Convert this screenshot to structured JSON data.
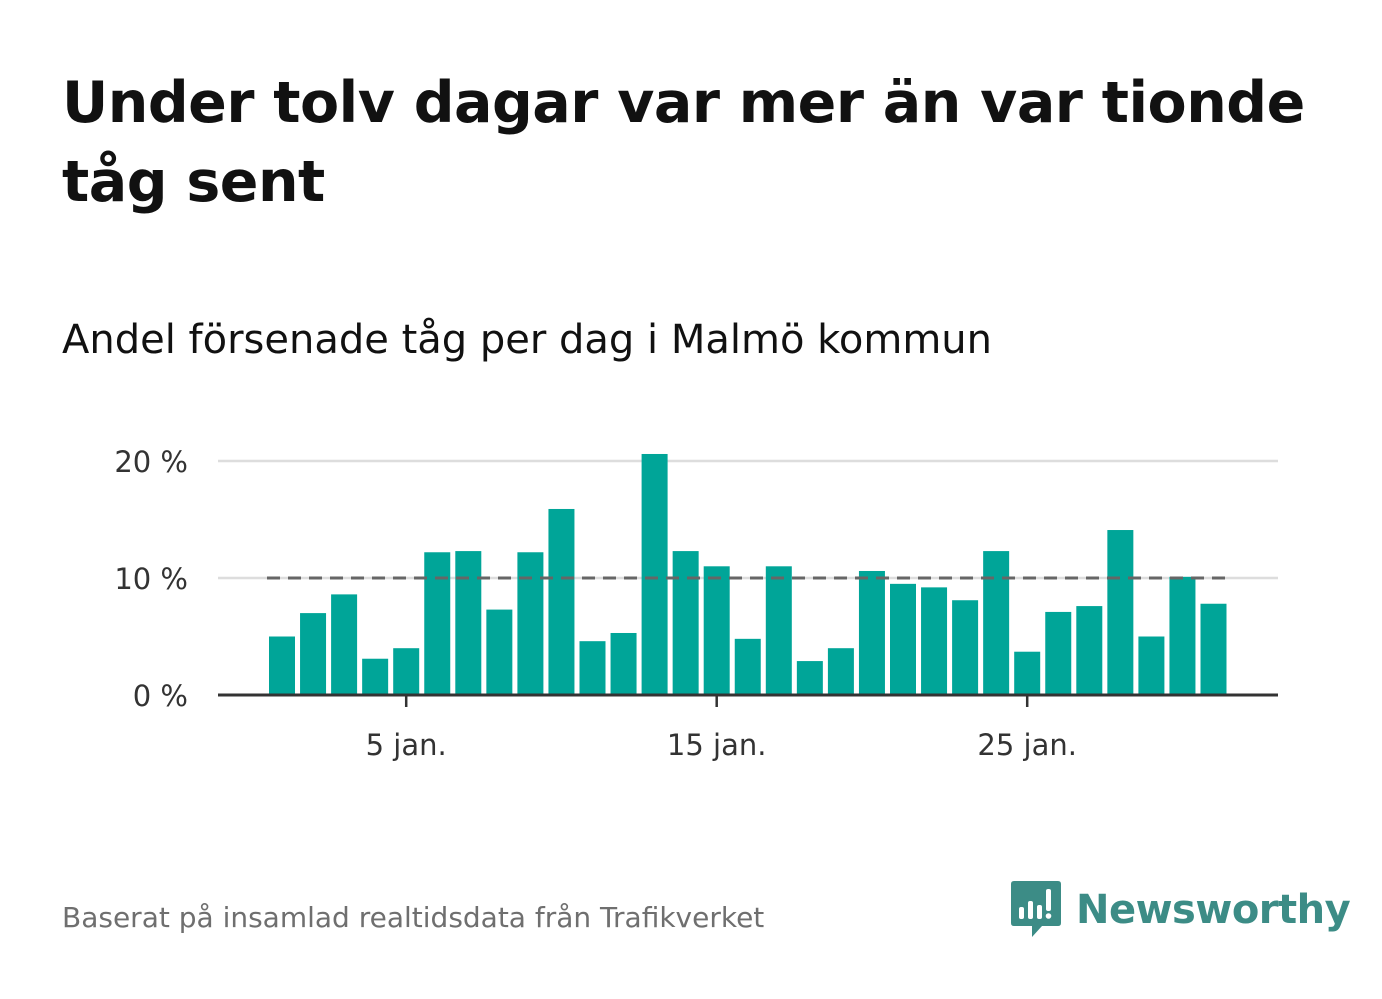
{
  "headline": "Under tolv dagar var mer än var tionde tåg sent",
  "source": "Baserat på insamlad realtidsdata från Trafikverket",
  "brand": {
    "name": "Newsworthy",
    "logo_icon": "bar-chart-speech-bubble-icon",
    "color": "#3c8c86"
  },
  "colors": {
    "bar": "#00a598",
    "reference_line": "#666666",
    "grid": "#dddddd",
    "axis": "#333333",
    "text": "#111111",
    "muted": "#6f6f6f"
  },
  "chart_data": {
    "type": "bar",
    "title": "Andel försenade tåg per dag i Malmö kommun",
    "x": [
      1,
      2,
      3,
      4,
      5,
      6,
      7,
      8,
      9,
      10,
      11,
      12,
      13,
      14,
      15,
      16,
      17,
      18,
      19,
      20,
      21,
      22,
      23,
      24,
      25,
      26,
      27,
      28,
      29,
      30,
      31
    ],
    "values": [
      5.0,
      7.0,
      8.6,
      3.1,
      4.0,
      12.2,
      12.3,
      7.3,
      12.2,
      15.9,
      4.6,
      5.3,
      20.6,
      12.3,
      11.0,
      4.8,
      11.0,
      2.9,
      4.0,
      10.6,
      9.5,
      9.2,
      8.1,
      12.3,
      3.7,
      7.1,
      7.6,
      14.1,
      5.0,
      10.1,
      7.8
    ],
    "ylim": [
      0,
      22
    ],
    "y_ticks": [
      {
        "value": 0,
        "label": "0 %"
      },
      {
        "value": 10,
        "label": "10 %"
      },
      {
        "value": 20,
        "label": "20 %"
      }
    ],
    "x_ticks": [
      {
        "value": 5,
        "label": "5 jan."
      },
      {
        "value": 15,
        "label": "15 jan."
      },
      {
        "value": 25,
        "label": "25 jan."
      }
    ],
    "reference_line": {
      "value": 10,
      "style": "dashed"
    },
    "grid": true,
    "legend": "none"
  }
}
